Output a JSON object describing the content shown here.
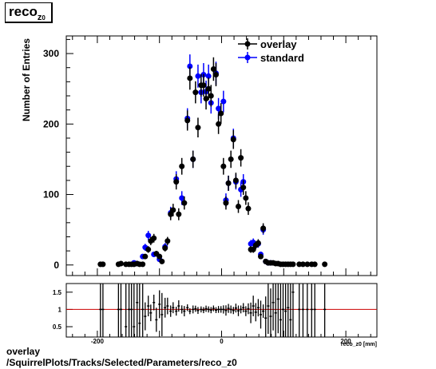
{
  "title": {
    "main": "reco",
    "sub": "z",
    "subsub": "0"
  },
  "caption": {
    "line1": "overlay",
    "line2": "/SquirrelPlots/Tracks/Selected/Parameters/reco_z0"
  },
  "colors": {
    "overlay": "#000000",
    "standard": "#0000ff",
    "ratio_line": "#cc0000"
  },
  "chart_data": [
    {
      "type": "scatter",
      "ylabel": "Number of Entries",
      "xlabel": "reco_z0 [mm]",
      "xlim": [
        -250,
        250
      ],
      "ylim": [
        -15,
        325
      ],
      "yticks": [
        0,
        100,
        200,
        300
      ],
      "xticks": [
        -200,
        0,
        200
      ],
      "legend": {
        "position": "top-right",
        "entries": [
          "overlay",
          "standard"
        ]
      },
      "series": [
        {
          "name": "overlay",
          "x": [
            -195,
            -191,
            -166,
            -162,
            -154,
            -149,
            -145,
            -141,
            -136,
            -132,
            -127,
            -123,
            -118,
            -114,
            -109,
            -105,
            -100,
            -96,
            -91,
            -87,
            -82,
            -78,
            -73,
            -69,
            -64,
            -60,
            -55,
            -51,
            -46,
            -42,
            -38,
            -33,
            -29,
            -25,
            -21,
            -17,
            -13,
            -9,
            -5,
            -1,
            3,
            7,
            11,
            15,
            19,
            23,
            27,
            31,
            35,
            39,
            43,
            47,
            51,
            55,
            59,
            63,
            67,
            71,
            75,
            79,
            83,
            87,
            91,
            95,
            99,
            103,
            107,
            111,
            115,
            125,
            131,
            138,
            145,
            150,
            166
          ],
          "y": [
            1,
            1,
            1,
            2,
            1,
            1,
            1,
            1,
            2,
            1,
            1,
            12,
            22,
            34,
            38,
            16,
            12,
            5,
            24,
            34,
            72,
            78,
            118,
            72,
            140,
            88,
            205,
            265,
            150,
            245,
            195,
            255,
            255,
            236,
            250,
            240,
            278,
            270,
            200,
            215,
            140,
            88,
            116,
            150,
            178,
            120,
            83,
            152,
            110,
            95,
            80,
            22,
            22,
            28,
            31,
            12,
            52,
            5,
            3,
            3,
            3,
            2,
            2,
            1,
            1,
            1,
            1,
            1,
            1,
            1,
            1,
            1,
            1,
            1,
            1
          ]
        },
        {
          "name": "standard",
          "x": [
            -141,
            -136,
            -127,
            -123,
            -118,
            -109,
            -100,
            -91,
            -82,
            -73,
            -64,
            -55,
            -51,
            -46,
            -38,
            -33,
            -29,
            -25,
            -21,
            -17,
            -9,
            -5,
            3,
            7,
            11,
            19,
            23,
            31,
            35,
            47,
            51,
            55,
            59,
            63,
            67,
            71,
            75,
            79
          ],
          "y": [
            3,
            2,
            12,
            25,
            42,
            15,
            8,
            26,
            74,
            122,
            95,
            208,
            282,
            150,
            268,
            245,
            270,
            246,
            268,
            230,
            272,
            222,
            232,
            92,
            116,
            180,
            118,
            107,
            118,
            30,
            32,
            28,
            30,
            15,
            50,
            5,
            3,
            3
          ]
        }
      ]
    },
    {
      "type": "scatter",
      "xlabel": "reco_z0 [mm]",
      "ylim": [
        0.2,
        1.75
      ],
      "yticks": [
        0.5,
        1,
        1.5
      ],
      "xticks": [
        -200,
        0,
        200
      ],
      "reference_line": 1,
      "series": [
        {
          "name": "ratio",
          "x": [
            -195,
            -191,
            -166,
            -162,
            -154,
            -149,
            -145,
            -141,
            -136,
            -132,
            -127,
            -123,
            -118,
            -114,
            -109,
            -105,
            -100,
            -96,
            -91,
            -87,
            -82,
            -78,
            -73,
            -69,
            -64,
            -60,
            -55,
            -51,
            -46,
            -42,
            -38,
            -33,
            -29,
            -25,
            -21,
            -17,
            -13,
            -9,
            -5,
            -1,
            3,
            7,
            11,
            15,
            19,
            23,
            27,
            31,
            35,
            39,
            43,
            47,
            51,
            55,
            59,
            63,
            67,
            71,
            75,
            79,
            83,
            87,
            91,
            95,
            99,
            103,
            107,
            111,
            115,
            125,
            131,
            138,
            145,
            150,
            166
          ],
          "y": [
            1,
            1,
            1,
            1,
            0.5,
            1,
            1,
            0.5,
            1.2,
            0.6,
            1,
            0.8,
            1.1,
            0.9,
            1.2,
            0.7,
            1.15,
            0.85,
            1.05,
            1.1,
            0.95,
            1.05,
            0.95,
            1.1,
            1.0,
            0.95,
            1.05,
            0.95,
            1.0,
            1.02,
            0.97,
            1.0,
            0.98,
            1.02,
            1.0,
            0.98,
            1.03,
            0.98,
            1.0,
            1.0,
            1.0,
            0.97,
            1.03,
            1.0,
            0.97,
            1.04,
            0.96,
            1.0,
            1.05,
            0.95,
            1.02,
            0.9,
            1.1,
            0.92,
            1.05,
            0.85,
            0.95,
            0.75,
            1.1,
            0.8,
            1.2,
            0.9,
            1.3,
            0.7,
            1,
            0.95,
            1.05,
            0.7,
            1.5,
            1,
            1,
            1,
            1,
            1,
            1
          ]
        }
      ]
    }
  ]
}
